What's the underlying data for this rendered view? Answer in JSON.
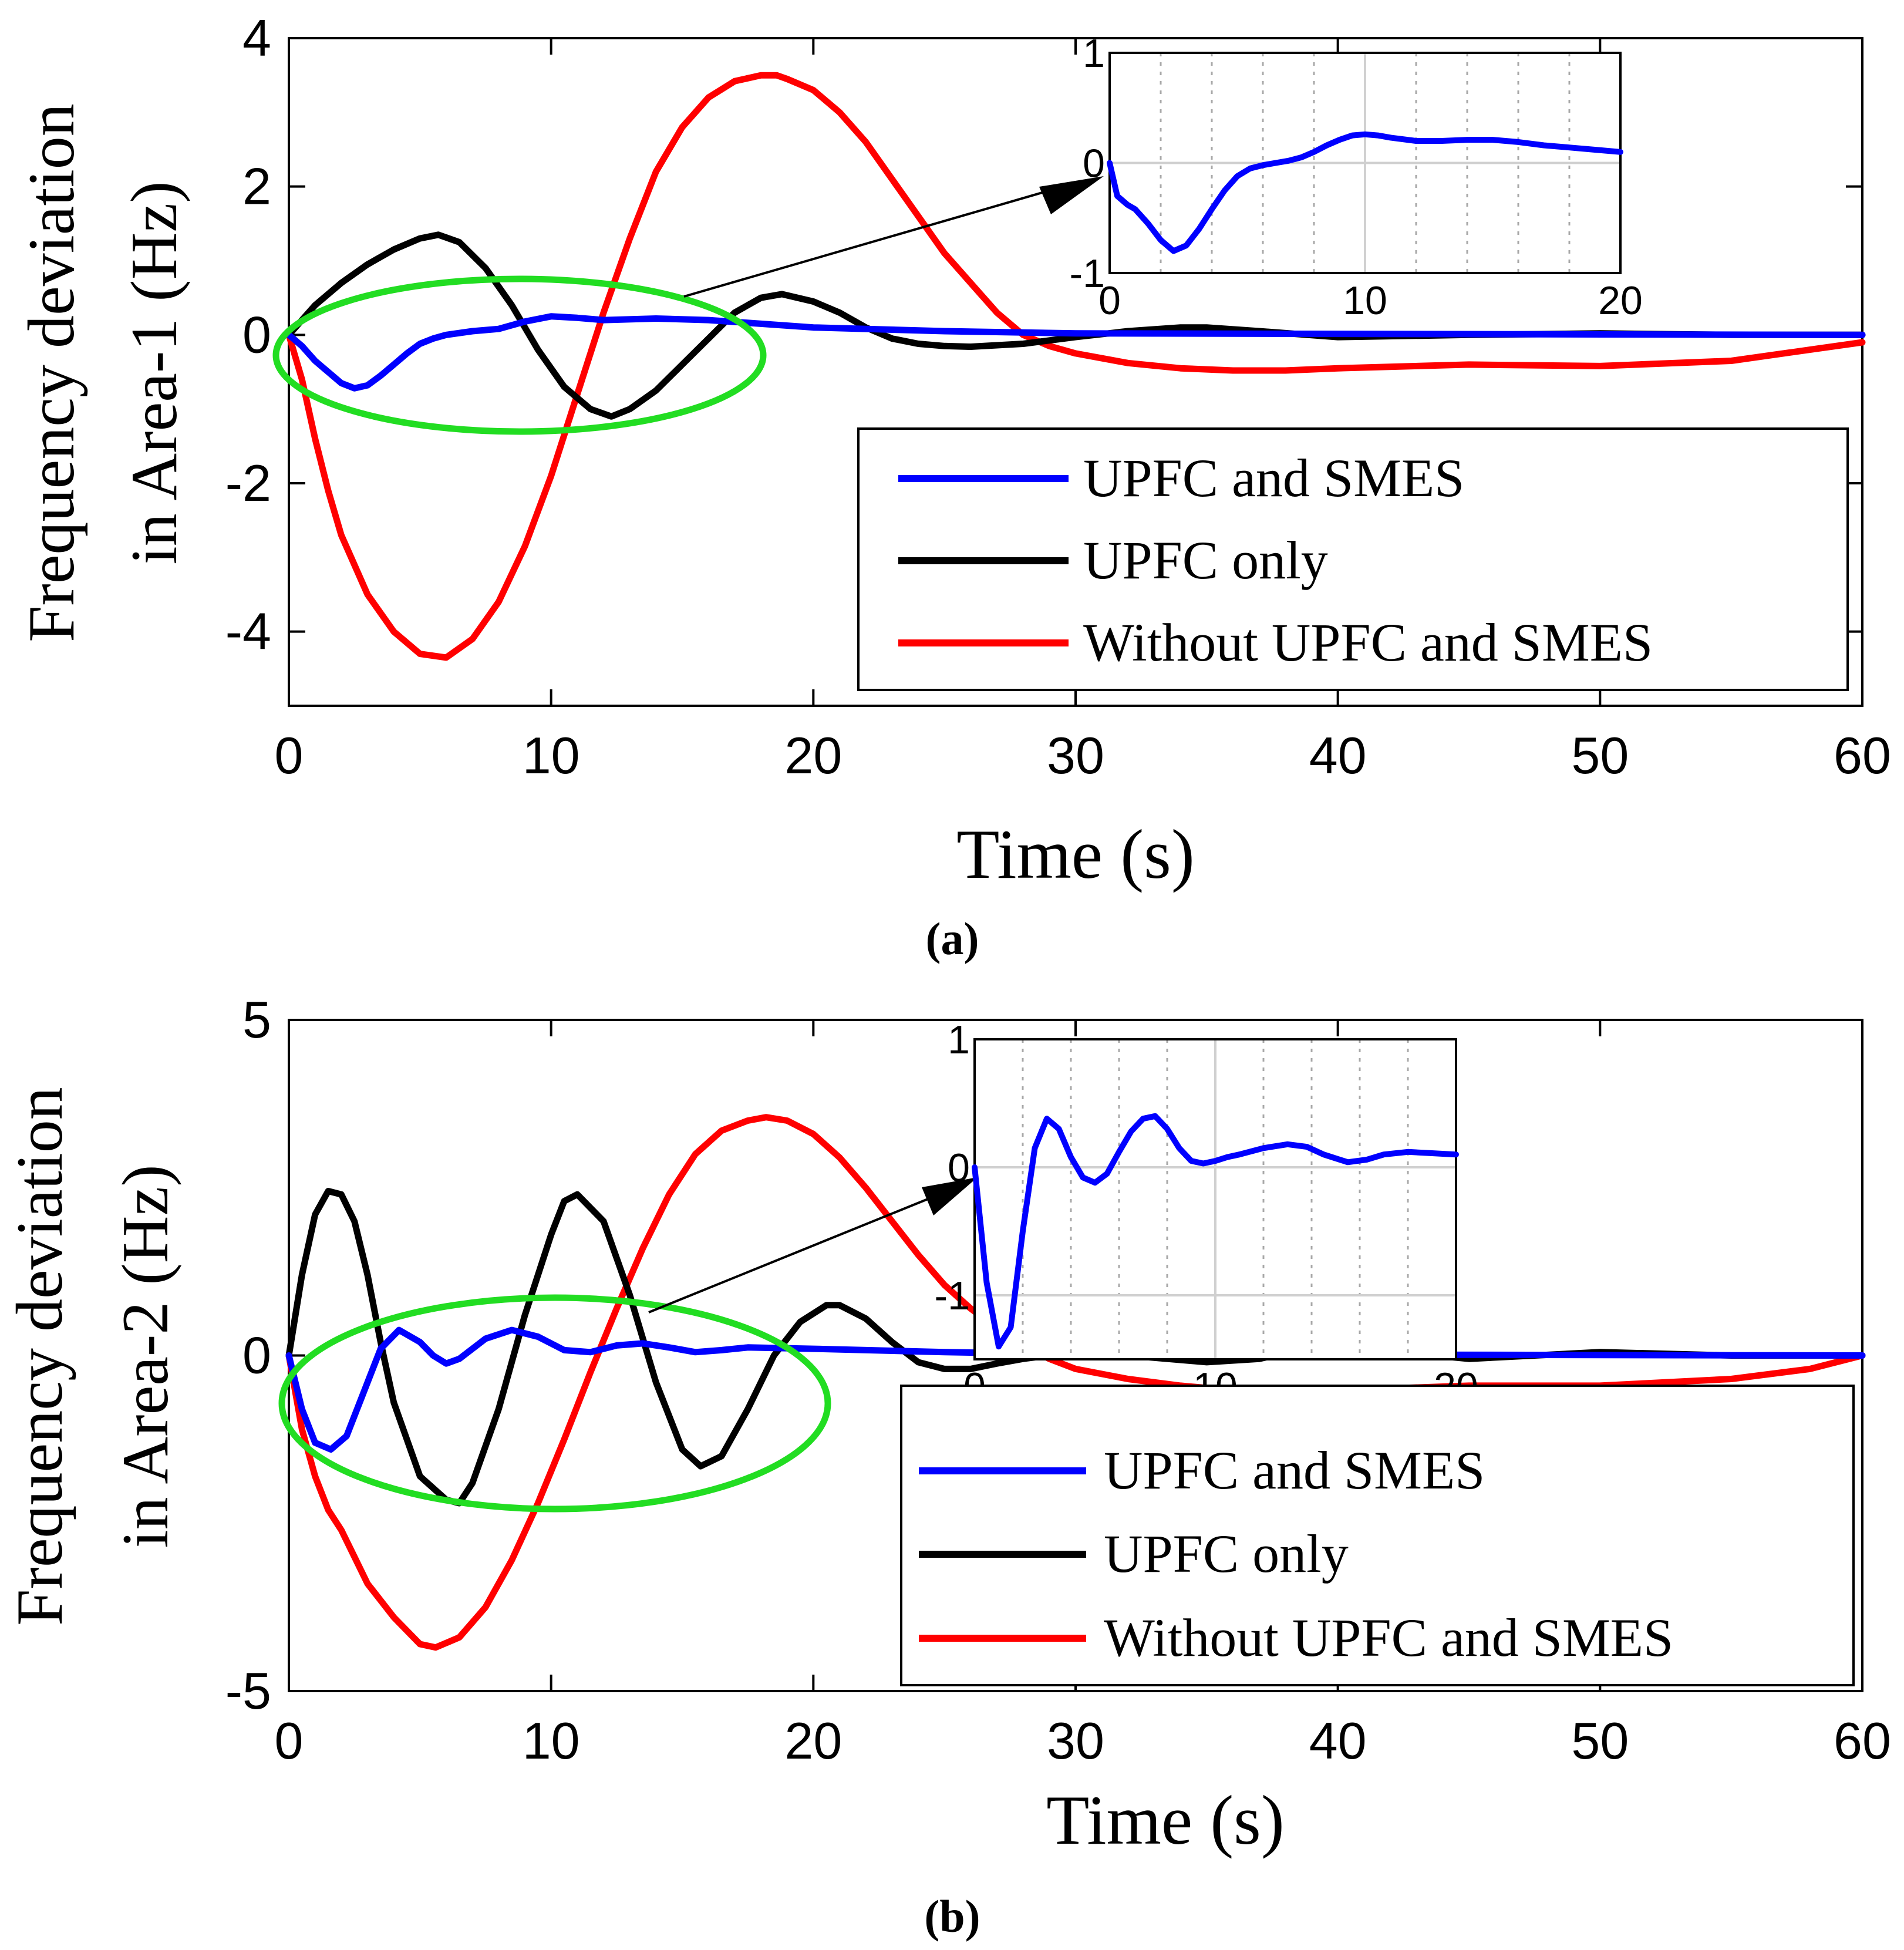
{
  "chart_data": [
    {
      "panel": "a",
      "caption": "(a)",
      "type": "line",
      "xlabel": "Time (s)",
      "ylabel_line1": "Frequency deviation",
      "ylabel_line2": "in Area-1 (Hz)",
      "xlim": [
        0,
        60
      ],
      "ylim": [
        -5,
        4
      ],
      "xticks": [
        0,
        10,
        20,
        30,
        40,
        50,
        60
      ],
      "yticks": [
        4,
        2,
        0,
        -2,
        -4
      ],
      "legend": [
        "UPFC and SMES",
        "UPFC only",
        "Without UPFC and SMES"
      ],
      "series": [
        {
          "name": "UPFC and SMES",
          "color": "#0000ff",
          "x": [
            0,
            0.5,
            1,
            1.5,
            2,
            2.5,
            3,
            3.5,
            4,
            4.5,
            5,
            5.5,
            6,
            7,
            8,
            9,
            10,
            11,
            12,
            14,
            16,
            18,
            20,
            25,
            30,
            60
          ],
          "y": [
            0,
            -0.15,
            -0.35,
            -0.5,
            -0.65,
            -0.72,
            -0.68,
            -0.55,
            -0.4,
            -0.25,
            -0.12,
            -0.05,
            0,
            0.05,
            0.08,
            0.18,
            0.25,
            0.23,
            0.2,
            0.22,
            0.2,
            0.15,
            0.1,
            0.05,
            0.02,
            0
          ]
        },
        {
          "name": "UPFC only",
          "color": "#000000",
          "x": [
            0,
            1,
            2,
            3,
            4,
            5,
            5.7,
            6.5,
            7.5,
            8.5,
            9.5,
            10.5,
            11.5,
            12.3,
            13,
            14,
            15,
            16,
            17,
            18,
            18.8,
            20,
            21,
            22,
            23,
            24,
            25,
            26,
            28,
            30,
            32,
            34,
            35,
            37,
            40,
            45,
            50,
            55,
            60
          ],
          "y": [
            0,
            0.4,
            0.7,
            0.95,
            1.15,
            1.3,
            1.35,
            1.25,
            0.9,
            0.4,
            -0.2,
            -0.7,
            -1.0,
            -1.1,
            -1.0,
            -0.75,
            -0.4,
            -0.05,
            0.3,
            0.5,
            0.55,
            0.45,
            0.3,
            0.1,
            -0.05,
            -0.12,
            -0.15,
            -0.16,
            -0.12,
            -0.03,
            0.05,
            0.1,
            0.1,
            0.05,
            -0.03,
            0,
            0.02,
            0,
            0
          ]
        },
        {
          "name": "Without UPFC and SMES",
          "color": "#ff0000",
          "x": [
            0,
            0.5,
            1,
            1.5,
            2,
            2.5,
            3,
            4,
            5,
            6,
            7,
            8,
            9,
            10,
            11,
            12,
            13,
            14,
            15,
            16,
            17,
            18,
            18.6,
            19,
            20,
            21,
            22,
            23,
            24,
            25,
            26,
            27,
            28,
            29,
            30,
            32,
            34,
            36,
            38,
            40,
            45,
            50,
            55,
            58,
            60
          ],
          "y": [
            0,
            -0.6,
            -1.4,
            -2.1,
            -2.7,
            -3.1,
            -3.5,
            -4.0,
            -4.3,
            -4.35,
            -4.1,
            -3.6,
            -2.85,
            -1.9,
            -0.8,
            0.3,
            1.3,
            2.2,
            2.8,
            3.2,
            3.42,
            3.5,
            3.5,
            3.45,
            3.3,
            3.0,
            2.6,
            2.1,
            1.6,
            1.1,
            0.7,
            0.3,
            0.0,
            -0.15,
            -0.25,
            -0.38,
            -0.45,
            -0.48,
            -0.48,
            -0.45,
            -0.4,
            -0.42,
            -0.35,
            -0.2,
            -0.1
          ]
        }
      ],
      "inset": {
        "xlim": [
          0,
          20
        ],
        "ylim": [
          -1,
          1
        ],
        "xticks": [
          0,
          10,
          20
        ],
        "yticks": [
          1,
          0,
          -1
        ],
        "x": [
          0,
          0.3,
          0.7,
          1,
          1.5,
          2,
          2.5,
          3,
          3.5,
          4,
          4.5,
          5,
          5.5,
          6,
          6.5,
          7,
          7.5,
          8,
          8.5,
          9,
          9.5,
          10,
          10.5,
          11,
          12,
          13,
          14,
          15,
          16,
          17,
          18,
          19,
          20
        ],
        "y": [
          0,
          -0.3,
          -0.38,
          -0.42,
          -0.55,
          -0.7,
          -0.8,
          -0.75,
          -0.6,
          -0.42,
          -0.25,
          -0.12,
          -0.05,
          -0.02,
          0,
          0.02,
          0.05,
          0.1,
          0.16,
          0.21,
          0.25,
          0.26,
          0.25,
          0.23,
          0.2,
          0.2,
          0.21,
          0.21,
          0.19,
          0.16,
          0.14,
          0.12,
          0.1
        ]
      }
    },
    {
      "panel": "b",
      "caption": "(b)",
      "type": "line",
      "xlabel": "Time (s)",
      "ylabel_line1": "Frequency deviation",
      "ylabel_line2": "in Area-2 (Hz)",
      "xlim": [
        0,
        60
      ],
      "ylim": [
        -5,
        5
      ],
      "xticks": [
        0,
        10,
        20,
        30,
        40,
        50,
        60
      ],
      "yticks": [
        5,
        0,
        -5
      ],
      "legend": [
        "UPFC and SMES",
        "UPFC only",
        "Without UPFC and SMES"
      ],
      "series": [
        {
          "name": "UPFC and SMES",
          "color": "#0000ff",
          "x": [
            0,
            0.5,
            1,
            1.6,
            2.2,
            2.8,
            3.5,
            4.2,
            5,
            5.5,
            6,
            6.5,
            7.5,
            8.5,
            9.5,
            10.5,
            11.5,
            12.5,
            13.5,
            14.5,
            15.5,
            16.5,
            17.5,
            20,
            25,
            30,
            60
          ],
          "y": [
            0,
            -0.8,
            -1.3,
            -1.4,
            -1.2,
            -0.6,
            0.1,
            0.38,
            0.2,
            0,
            -0.12,
            -0.05,
            0.25,
            0.38,
            0.28,
            0.08,
            0.05,
            0.15,
            0.18,
            0.12,
            0.05,
            0.08,
            0.12,
            0.1,
            0.05,
            0.02,
            0
          ]
        },
        {
          "name": "UPFC only",
          "color": "#000000",
          "x": [
            0,
            0.5,
            1,
            1.5,
            2,
            2.5,
            3,
            3.5,
            4,
            5,
            6,
            6.5,
            7,
            8,
            9,
            10,
            10.5,
            11,
            12,
            13,
            14,
            15,
            15.7,
            16.5,
            17.5,
            18.5,
            19.5,
            20.5,
            21,
            22,
            23,
            24,
            25,
            26,
            27,
            28,
            30,
            32,
            35,
            37,
            39,
            41,
            45,
            50,
            55,
            60
          ],
          "y": [
            0,
            1.2,
            2.1,
            2.45,
            2.4,
            2.0,
            1.2,
            0.2,
            -0.7,
            -1.8,
            -2.15,
            -2.2,
            -1.9,
            -0.8,
            0.6,
            1.8,
            2.3,
            2.4,
            2.0,
            0.9,
            -0.4,
            -1.4,
            -1.65,
            -1.5,
            -0.8,
            0.0,
            0.5,
            0.75,
            0.75,
            0.55,
            0.2,
            -0.1,
            -0.2,
            -0.2,
            -0.12,
            -0.05,
            0.05,
            0.0,
            -0.1,
            -0.05,
            0.12,
            0.1,
            -0.05,
            0.05,
            0,
            0
          ]
        },
        {
          "name": "Without UPFC and SMES",
          "color": "#ff0000",
          "x": [
            0,
            0.5,
            1,
            1.5,
            2,
            2.5,
            3,
            4,
            5,
            5.6,
            6.5,
            7.5,
            8.5,
            9.5,
            10.5,
            11.5,
            12.5,
            13.5,
            14.5,
            15.5,
            16.5,
            17.5,
            18.2,
            19,
            20,
            21,
            22,
            23,
            24,
            25,
            26,
            27,
            28,
            29,
            30,
            32,
            34,
            36,
            38,
            40,
            45,
            50,
            55,
            58,
            60
          ],
          "y": [
            0,
            -1.1,
            -1.8,
            -2.3,
            -2.6,
            -3.0,
            -3.4,
            -3.9,
            -4.3,
            -4.35,
            -4.2,
            -3.75,
            -3.05,
            -2.2,
            -1.25,
            -0.25,
            0.7,
            1.6,
            2.4,
            3.0,
            3.35,
            3.5,
            3.55,
            3.5,
            3.3,
            2.95,
            2.5,
            2.0,
            1.5,
            1.05,
            0.7,
            0.4,
            0.15,
            -0.05,
            -0.2,
            -0.35,
            -0.45,
            -0.52,
            -0.55,
            -0.52,
            -0.45,
            -0.45,
            -0.35,
            -0.2,
            0
          ]
        }
      ],
      "inset": {
        "xlim": [
          0,
          20
        ],
        "ylim": [
          -1.5,
          1
        ],
        "xticks": [
          0,
          10,
          20
        ],
        "yticks": [
          1,
          0,
          -1
        ],
        "x": [
          0,
          0.5,
          1,
          1.5,
          2,
          2.5,
          3,
          3.5,
          4,
          4.5,
          5,
          5.5,
          6,
          6.5,
          7,
          7.5,
          8,
          8.5,
          9,
          9.5,
          10,
          10.5,
          11,
          12,
          13,
          13.8,
          14.5,
          15.5,
          16.3,
          17,
          18,
          19,
          20
        ],
        "y": [
          0,
          -0.9,
          -1.4,
          -1.25,
          -0.5,
          0.15,
          0.38,
          0.3,
          0.08,
          -0.08,
          -0.12,
          -0.05,
          0.12,
          0.28,
          0.38,
          0.4,
          0.3,
          0.15,
          0.05,
          0.03,
          0.05,
          0.08,
          0.1,
          0.15,
          0.18,
          0.16,
          0.1,
          0.04,
          0.06,
          0.1,
          0.12,
          0.11,
          0.1
        ]
      }
    }
  ]
}
